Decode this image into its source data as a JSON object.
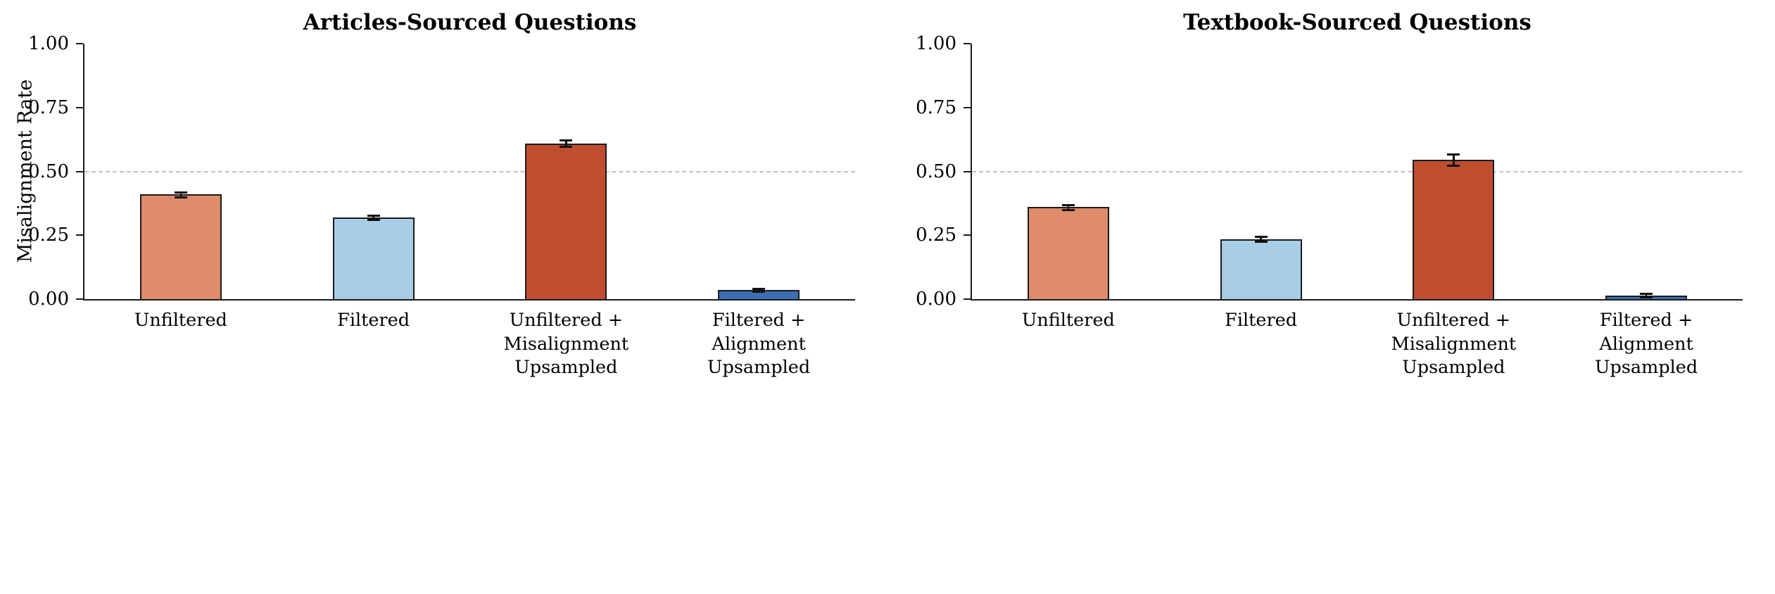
{
  "figure": {
    "background": "#ffffff",
    "text_color": "#000000",
    "axis_color": "#1a1a1a",
    "reference_line_color": "#c0c0c0"
  },
  "chart_data": [
    {
      "type": "bar",
      "title": "Articles-Sourced Questions",
      "ylabel": "Misalignment Rate",
      "categories": [
        "Unfiltered",
        "Filtered",
        "Unfiltered +\nMisalignment\nUpsampled",
        "Filtered +\nAlignment\nUpsampled"
      ],
      "values": [
        0.41,
        0.32,
        0.61,
        0.035
      ],
      "errors": [
        0.01,
        0.008,
        0.012,
        0.006
      ],
      "bar_colors": [
        "#DE8C69",
        "#A8CEE5",
        "#BF4E31",
        "#3E6DB3"
      ],
      "edge_color": "#1a1a1a",
      "ylim": [
        0,
        1
      ],
      "yticks": [
        0,
        0.25,
        0.5,
        0.75,
        1
      ],
      "ytick_labels": [
        "0.00",
        "0.25",
        "0.50",
        "0.75",
        "1.00"
      ],
      "reference_line": 0.5,
      "grid": "dashed-horizontal-line-at-0.50",
      "legend": "none",
      "error_bars": "symmetric-with-caps"
    },
    {
      "type": "bar",
      "title": "Textbook-Sourced Questions",
      "ylabel": "",
      "categories": [
        "Unfiltered",
        "Filtered",
        "Unfiltered +\nMisalignment\nUpsampled",
        "Filtered +\nAlignment\nUpsampled"
      ],
      "values": [
        0.36,
        0.235,
        0.545,
        0.015
      ],
      "errors": [
        0.01,
        0.01,
        0.022,
        0.006
      ],
      "bar_colors": [
        "#DE8C69",
        "#A8CEE5",
        "#BF4E31",
        "#3E6DB3"
      ],
      "edge_color": "#1a1a1a",
      "ylim": [
        0,
        1
      ],
      "yticks": [
        0,
        0.25,
        0.5,
        0.75,
        1
      ],
      "ytick_labels": [
        "0.00",
        "0.25",
        "0.50",
        "0.75",
        "1.00"
      ],
      "reference_line": 0.5,
      "grid": "dashed-horizontal-line-at-0.50",
      "legend": "none",
      "error_bars": "symmetric-with-caps"
    }
  ]
}
